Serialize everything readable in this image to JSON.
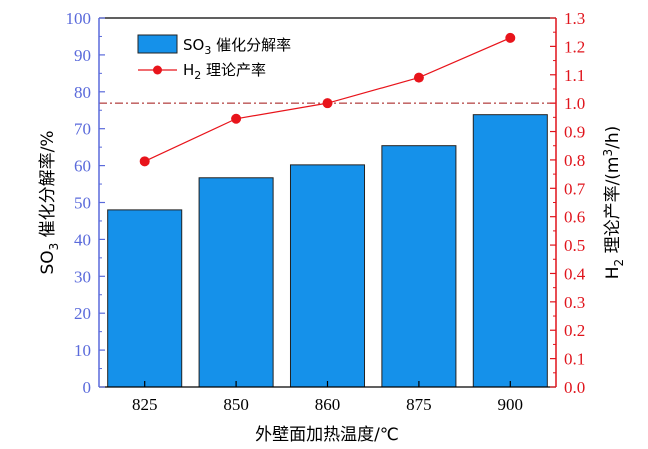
{
  "chart_data": {
    "type": "bar+line",
    "categories": [
      "825",
      "850",
      "860",
      "875",
      "900"
    ],
    "xlabel": "外壁面加热温度/℃",
    "series": [
      {
        "name": "SO3 催化分解率",
        "name_parts": [
          "SO",
          "3",
          " 催化分解率"
        ],
        "type": "bar",
        "axis": "left",
        "values": [
          48,
          56.7,
          60.2,
          65.4,
          73.8
        ],
        "color": "#1591EA"
      },
      {
        "name": "H2 理论产率",
        "name_parts": [
          "H",
          "2",
          " 理论产率"
        ],
        "type": "line",
        "axis": "right",
        "values": [
          0.795,
          0.945,
          1.0,
          1.09,
          1.23
        ],
        "color": "#E8141B"
      }
    ],
    "y_left": {
      "label_parts": [
        "SO",
        "3",
        " 催化分解率/%"
      ],
      "ylim": [
        0,
        100
      ],
      "ticks": [
        "0",
        "10",
        "20",
        "30",
        "40",
        "50",
        "60",
        "70",
        "80",
        "90",
        "100"
      ],
      "color": "#5A6ADB"
    },
    "y_right": {
      "label_parts": [
        "H",
        "2",
        " 理论产率/(m",
        "3",
        "/h)"
      ],
      "ylim": [
        0,
        1.3
      ],
      "ticks": [
        "0.0",
        "0.1",
        "0.2",
        "0.3",
        "0.4",
        "0.5",
        "0.6",
        "0.7",
        "0.8",
        "0.9",
        "1.0",
        "1.1",
        "1.2",
        "1.3"
      ],
      "color": "#E0141C"
    },
    "reference_line": {
      "value": 1.0,
      "axis": "right",
      "style": "dash-dot",
      "color": "#A01010"
    },
    "legend_position": "top-left",
    "grid": false
  }
}
